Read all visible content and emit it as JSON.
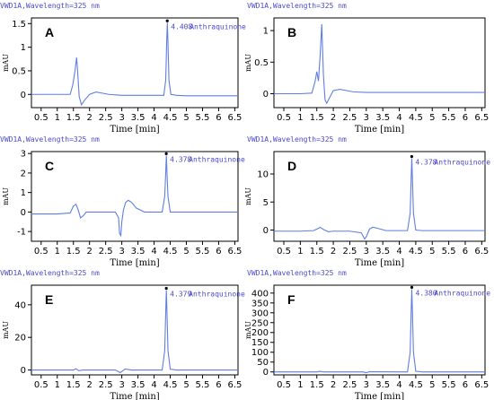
{
  "chart_data": [
    {
      "type": "line",
      "panel": "A",
      "header": "VWD1A,Wavelength=325 nm",
      "xlabel": "Time [min]",
      "ylabel": "mAU",
      "xlim": [
        0.2,
        6.6
      ],
      "ylim": [
        -0.28,
        1.62
      ],
      "x_ticks": [
        "0.5",
        "1",
        "1.5",
        "2",
        "2.5",
        "3",
        "3.5",
        "4",
        "4.5",
        "5",
        "5.5",
        "6",
        "6.5"
      ],
      "y_ticks": [
        "0",
        "0.5",
        "1",
        "1.5"
      ],
      "peak_annotation": {
        "time": "4.408",
        "name": "Anthraquinone"
      },
      "series": [
        {
          "x": [
            0.2,
            1.0,
            1.4,
            1.48,
            1.55,
            1.6,
            1.63,
            1.68,
            1.75,
            1.85,
            2.0,
            2.2,
            2.6,
            3.0,
            3.5,
            4.0,
            4.3,
            4.36,
            4.39,
            4.41,
            4.43,
            4.46,
            4.52,
            4.7,
            5.0,
            5.5,
            6.0,
            6.6
          ],
          "y": [
            0,
            0,
            0,
            0.2,
            0.5,
            0.78,
            0.5,
            -0.05,
            -0.22,
            -0.12,
            0.0,
            0.05,
            0.0,
            -0.02,
            -0.02,
            -0.02,
            -0.02,
            0.3,
            1.1,
            1.52,
            1.1,
            0.3,
            0.0,
            -0.02,
            -0.03,
            -0.03,
            -0.03,
            -0.03
          ]
        }
      ]
    },
    {
      "type": "line",
      "panel": "B",
      "header": "VWD1A,Wavelength=325 nm",
      "xlabel": "Time [min]",
      "ylabel": "mAU",
      "xlim": [
        0.2,
        6.6
      ],
      "ylim": [
        -0.22,
        1.2
      ],
      "x_ticks": [
        "0.5",
        "1",
        "1.5",
        "2",
        "2.5",
        "3",
        "3.5",
        "4",
        "4.5",
        "5",
        "5.5",
        "6",
        "6.5"
      ],
      "y_ticks": [
        "0",
        "0.5",
        "1"
      ],
      "series": [
        {
          "x": [
            0.2,
            1.0,
            1.35,
            1.45,
            1.5,
            1.55,
            1.6,
            1.65,
            1.7,
            1.75,
            1.8,
            1.9,
            2.0,
            2.2,
            2.6,
            3.0,
            4.0,
            5.0,
            6.0,
            6.6
          ],
          "y": [
            0,
            0,
            0.01,
            0.2,
            0.35,
            0.2,
            0.6,
            1.1,
            0.3,
            -0.1,
            -0.15,
            -0.05,
            0.05,
            0.07,
            0.03,
            0.02,
            0.02,
            0.02,
            0.02,
            0.02
          ]
        }
      ]
    },
    {
      "type": "line",
      "panel": "C",
      "header": "VWD1A,Wavelength=325 nm",
      "xlabel": "Time [min]",
      "ylabel": "mAU",
      "xlim": [
        0.2,
        6.6
      ],
      "ylim": [
        -1.5,
        3.1
      ],
      "x_ticks": [
        "0.5",
        "1",
        "1.5",
        "2",
        "2.5",
        "3",
        "3.5",
        "4",
        "4.5",
        "5",
        "5.5",
        "6",
        "6.5"
      ],
      "y_ticks": [
        "-1",
        "0",
        "1",
        "2",
        "3"
      ],
      "peak_annotation": {
        "time": "4.378",
        "name": "Anthraquinone"
      },
      "series": [
        {
          "x": [
            0.2,
            1.0,
            1.4,
            1.5,
            1.58,
            1.65,
            1.72,
            1.8,
            1.9,
            2.0,
            2.3,
            2.6,
            2.8,
            2.9,
            2.93,
            2.97,
            3.0,
            3.05,
            3.12,
            3.2,
            3.3,
            3.45,
            3.7,
            4.0,
            4.25,
            4.33,
            4.36,
            4.38,
            4.4,
            4.43,
            4.5,
            4.7,
            5.0,
            5.5,
            6.0,
            6.6
          ],
          "y": [
            -0.1,
            -0.1,
            -0.05,
            0.3,
            0.4,
            0.1,
            -0.3,
            -0.2,
            0.0,
            0.0,
            0.0,
            0.0,
            0.0,
            -0.3,
            -1.1,
            -1.2,
            -0.5,
            0.1,
            0.5,
            0.6,
            0.5,
            0.2,
            0.0,
            0.0,
            0.0,
            0.8,
            2.0,
            2.9,
            2.0,
            0.8,
            0.0,
            0.0,
            0.0,
            0.0,
            0.0,
            0.0
          ]
        }
      ]
    },
    {
      "type": "line",
      "panel": "D",
      "header": "VWD1A,Wavelength=325 nm",
      "xlabel": "Time [min]",
      "ylabel": "mAU",
      "xlim": [
        0.2,
        6.6
      ],
      "ylim": [
        -2.0,
        14.0
      ],
      "x_ticks": [
        "0.5",
        "1",
        "1.5",
        "2",
        "2.5",
        "3",
        "3.5",
        "4",
        "4.5",
        "5",
        "5.5",
        "6",
        "6.5"
      ],
      "y_ticks": [
        "0",
        "5",
        "10"
      ],
      "peak_annotation": {
        "time": "4.378",
        "name": "Anthraquinone"
      },
      "series": [
        {
          "x": [
            0.2,
            1.0,
            1.4,
            1.55,
            1.6,
            1.7,
            1.85,
            2.0,
            2.5,
            2.85,
            2.95,
            3.0,
            3.1,
            3.2,
            3.35,
            3.6,
            4.0,
            4.25,
            4.33,
            4.36,
            4.38,
            4.4,
            4.43,
            4.5,
            4.7,
            5.0,
            5.5,
            6.0,
            6.6
          ],
          "y": [
            -0.2,
            -0.2,
            -0.1,
            0.3,
            0.5,
            0.1,
            -0.3,
            -0.2,
            -0.2,
            -0.5,
            -1.6,
            -1.2,
            0.2,
            0.5,
            0.3,
            -0.1,
            -0.1,
            -0.1,
            3.0,
            9.0,
            12.8,
            9.0,
            3.0,
            0.0,
            -0.1,
            -0.1,
            -0.1,
            -0.1,
            -0.1
          ]
        }
      ]
    },
    {
      "type": "line",
      "panel": "E",
      "header": "VWD1A,Wavelength=325 nm",
      "xlabel": "Time [min]",
      "ylabel": "mAU",
      "xlim": [
        0.2,
        6.6
      ],
      "ylim": [
        -3.0,
        52.0
      ],
      "x_ticks": [
        "0.5",
        "1",
        "1.5",
        "2",
        "2.5",
        "3",
        "3.5",
        "4",
        "4.5",
        "5",
        "5.5",
        "6",
        "6.5"
      ],
      "y_ticks": [
        "0",
        "20",
        "40"
      ],
      "peak_annotation": {
        "time": "4.379",
        "name": "Anthraquinone"
      },
      "series": [
        {
          "x": [
            0.2,
            1.0,
            1.5,
            1.58,
            1.66,
            1.8,
            2.0,
            2.8,
            2.95,
            3.02,
            3.1,
            3.3,
            4.0,
            4.25,
            4.33,
            4.36,
            4.38,
            4.4,
            4.43,
            4.5,
            4.7,
            5.0,
            6.0,
            6.6
          ],
          "y": [
            0,
            0,
            0,
            0.8,
            -0.4,
            0,
            0,
            0,
            -1.6,
            -0.6,
            0.6,
            0,
            0,
            0,
            12,
            35,
            49,
            35,
            12,
            0.5,
            0,
            0,
            0,
            0
          ]
        }
      ]
    },
    {
      "type": "line",
      "panel": "F",
      "header": "VWD1A,Wavelength=325 nm",
      "xlabel": "Time [min]",
      "ylabel": "mAU",
      "xlim": [
        0.2,
        6.6
      ],
      "ylim": [
        -15.0,
        440.0
      ],
      "x_ticks": [
        "0.5",
        "1",
        "1.5",
        "2",
        "2.5",
        "3",
        "3.5",
        "4",
        "4.5",
        "5",
        "5.5",
        "6",
        "6.5"
      ],
      "y_ticks": [
        "0",
        "50",
        "100",
        "150",
        "200",
        "250",
        "300",
        "350",
        "400"
      ],
      "peak_annotation": {
        "time": "4.380",
        "name": "Anthraquinone"
      },
      "series": [
        {
          "x": [
            0.2,
            1.0,
            1.5,
            1.6,
            1.7,
            2.0,
            2.9,
            3.0,
            3.1,
            4.0,
            4.25,
            4.33,
            4.36,
            4.38,
            4.4,
            4.43,
            4.5,
            4.7,
            5.0,
            6.0,
            6.6
          ],
          "y": [
            0,
            0,
            0,
            3,
            0,
            0,
            0,
            -4,
            1,
            0,
            0,
            100,
            300,
            420,
            300,
            100,
            3,
            0,
            0,
            0,
            0
          ]
        }
      ]
    }
  ]
}
